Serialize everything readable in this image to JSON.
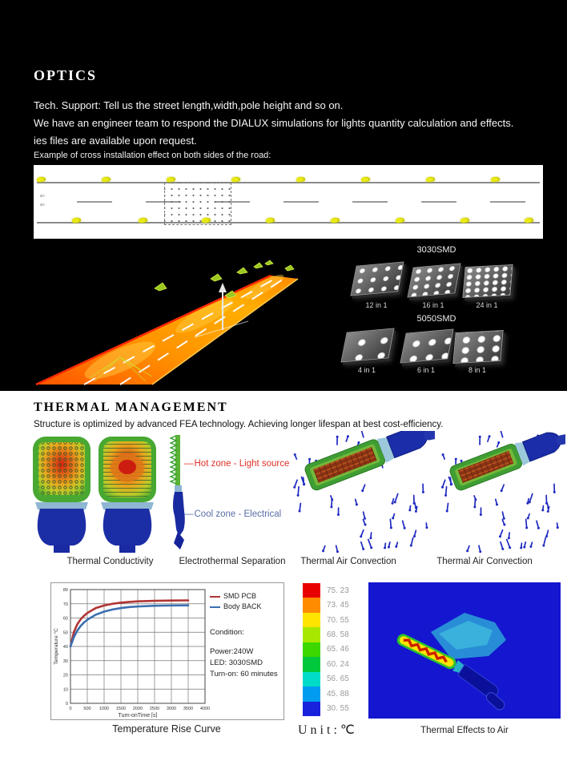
{
  "optics": {
    "title": "OPTICS",
    "lines": [
      "Tech. Support: Tell us the street length,width,pole height and so on.",
      "We have an engineer team to respond the DIALUX simulations for lights quantity calculation and effects.",
      "ies files are available upon request."
    ],
    "example_label": "Example of cross installation effect on both sides of the road:"
  },
  "modules": {
    "group_3030": {
      "title": "3030SMD",
      "items": [
        "12 in 1",
        "16 in 1",
        "24 in 1"
      ]
    },
    "group_5050": {
      "title": "5050SMD",
      "items": [
        "4 in 1",
        "6 in 1",
        "8 in 1"
      ]
    }
  },
  "thermal": {
    "title": "THERMAL MANAGEMENT",
    "subtitle": "Structure is optimized by advanced FEA technology. Achieving longer lifespan at best cost-efficiency.",
    "hot_zone_label": "Hot zone - Light source",
    "cool_zone_label": "Cool zone - Electrical",
    "hot_color": "#e03028",
    "cool_color": "#5a6da6",
    "captions": [
      "Thermal Conductivity",
      "Electrothermal Separation",
      "Thermal Air Convection",
      "Thermal Air Convection"
    ]
  },
  "chart_data": {
    "type": "line",
    "title": "Temperature Rise Curve",
    "xlabel": "Turn-onTime [s]",
    "ylabel": "Temperature °C",
    "xlim": [
      0,
      4000
    ],
    "ylim": [
      0,
      80
    ],
    "xticks": [
      0,
      500,
      1000,
      1500,
      2000,
      2500,
      3000,
      3500,
      4000
    ],
    "yticks": [
      0,
      10,
      20,
      30,
      40,
      50,
      60,
      70,
      80
    ],
    "grid": true,
    "legend_position": "top-right-outside",
    "x": [
      0,
      100,
      200,
      300,
      400,
      500,
      750,
      1000,
      1250,
      1500,
      1750,
      2000,
      2500,
      3000,
      3500
    ],
    "series": [
      {
        "name": "SMD PCB",
        "color": "#b13434",
        "values": [
          40,
          50,
          55.5,
          59,
          61.5,
          63.5,
          67,
          68.8,
          70,
          70.8,
          71.3,
          71.7,
          72.1,
          72.3,
          72.4
        ]
      },
      {
        "name": "Body BACK",
        "color": "#3b6fb0",
        "values": [
          40,
          46.5,
          51,
          54.3,
          56.8,
          58.8,
          62.3,
          64.5,
          66,
          67,
          67.7,
          68.1,
          68.6,
          68.8,
          68.9
        ]
      }
    ],
    "condition_lines": [
      "Condition:",
      "",
      "Power:240W",
      "LED: 3030SMD",
      "Turn-on: 60 minutes"
    ]
  },
  "color_scale": {
    "values": [
      "75. 23",
      "73. 45",
      "70. 55",
      "68. 58",
      "65. 46",
      "60. 24",
      "56. 65",
      "45. 88",
      "30. 55"
    ],
    "colors": [
      "#e80000",
      "#ff8c00",
      "#ffe400",
      "#a8e800",
      "#3cd800",
      "#00c83c",
      "#00dcc8",
      "#009cf0",
      "#1822dc"
    ],
    "unit_label": "Unit:℃"
  },
  "thermal_air": {
    "caption": "Thermal Effects to Air"
  }
}
